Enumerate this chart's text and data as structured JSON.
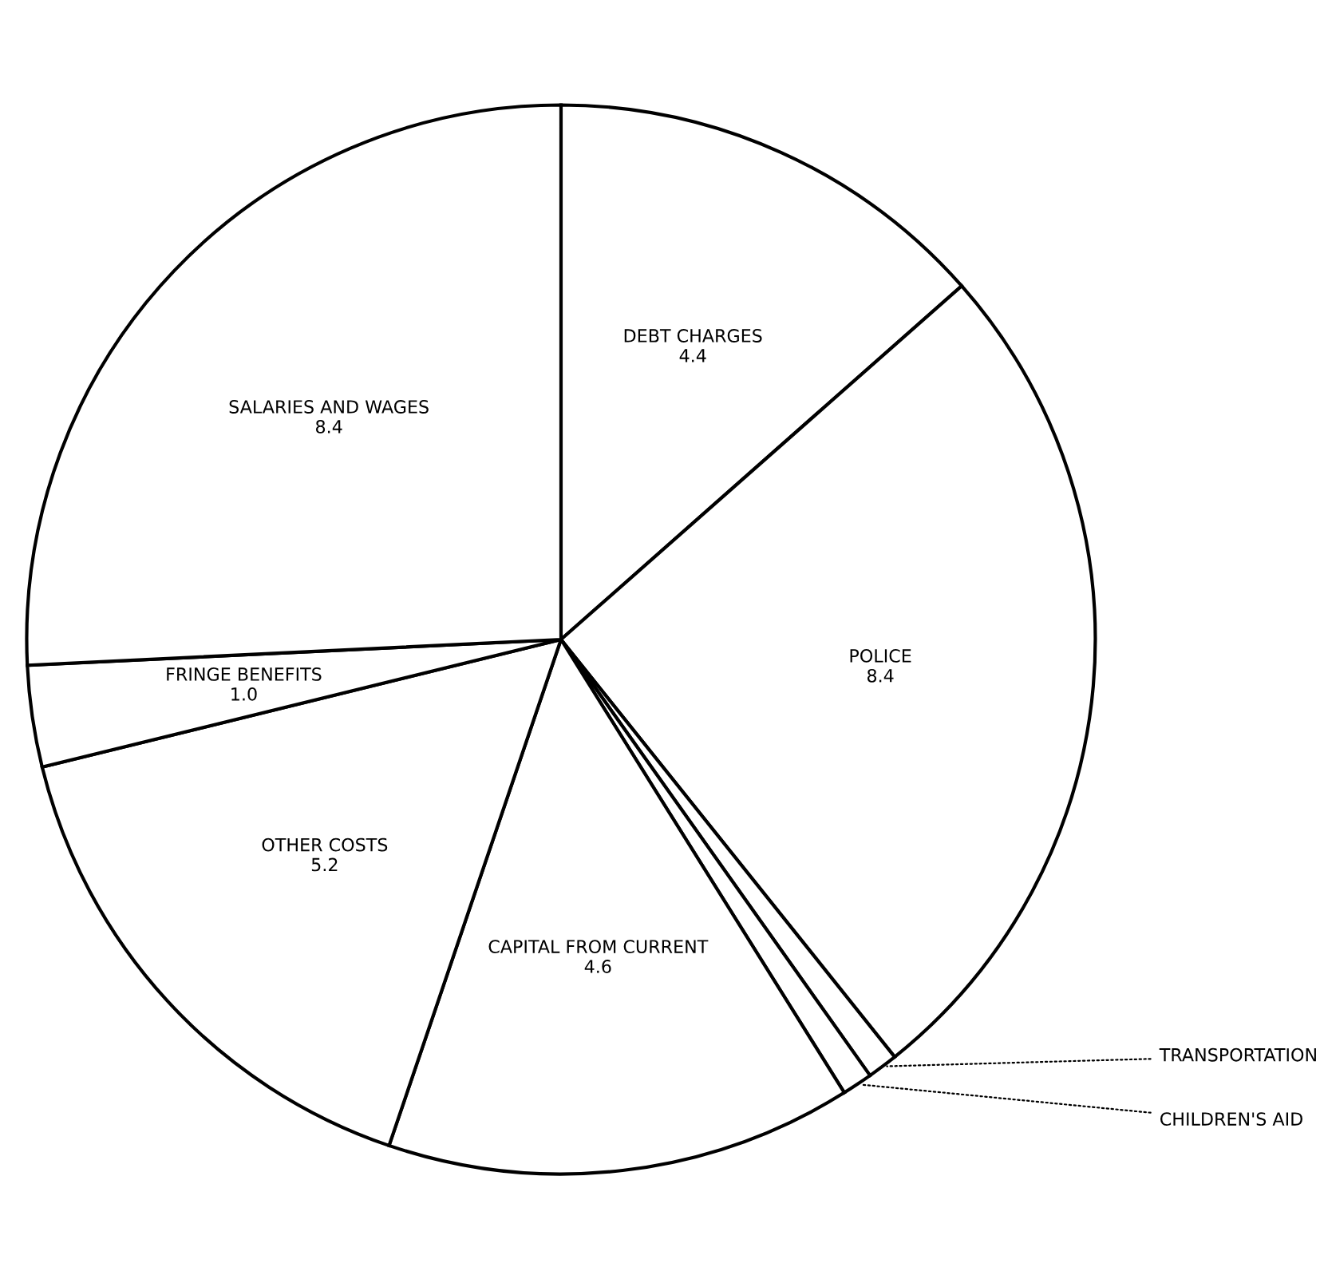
{
  "chart_data": {
    "type": "pie",
    "categories": [
      "DEBT CHARGES",
      "POLICE",
      "TRANSPORTATION",
      "CHILDREN'S AID",
      "CAPITAL FROM CURRENT",
      "OTHER COSTS",
      "FRINGE BENEFITS",
      "SALARIES AND WAGES"
    ],
    "values": [
      4.4,
      8.4,
      0.3,
      0.3,
      4.6,
      5.2,
      1.0,
      8.4
    ],
    "value_labels": [
      "4.4",
      "8.4",
      null,
      null,
      "4.6",
      "5.2",
      "1.0",
      "8.4"
    ],
    "colors": [
      "#ffffff",
      "#ffffff",
      "#ffffff",
      "#ffffff",
      "#ffffff",
      "#ffffff",
      "#ffffff",
      "#ffffff"
    ],
    "legend": false
  }
}
